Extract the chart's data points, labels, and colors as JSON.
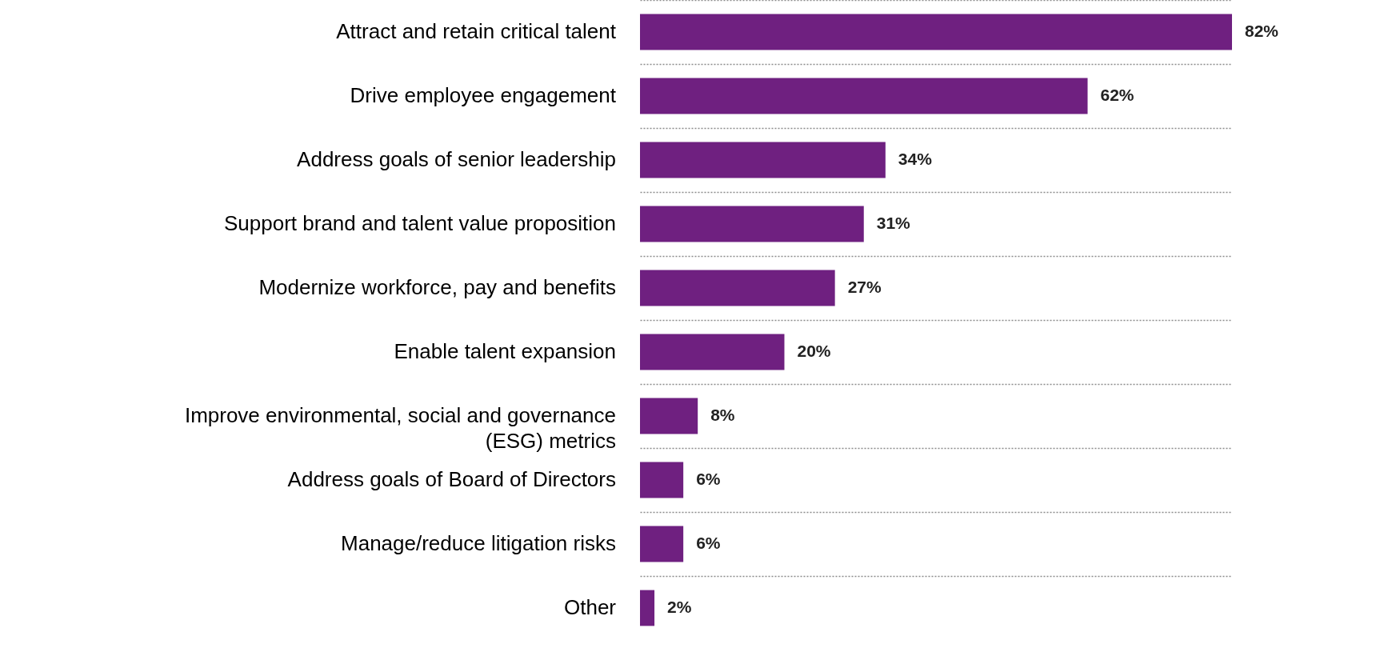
{
  "chart_data": {
    "type": "bar",
    "orientation": "horizontal",
    "categories": [
      "Attract and retain critical talent",
      "Drive employee engagement",
      "Address goals of senior leadership",
      "Support brand and talent value proposition",
      "Modernize workforce, pay and benefits",
      "Enable talent expansion",
      "Improve environmental, social and governance (ESG) metrics",
      "Address goals of Board of Directors",
      "Manage/reduce litigation risks",
      "Other"
    ],
    "values": [
      82,
      62,
      34,
      31,
      27,
      20,
      8,
      6,
      6,
      2
    ],
    "color": "#6f2080",
    "value_labels": [
      "82%",
      "62%",
      "34%",
      "31%",
      "27%",
      "20%",
      "8%",
      "6%",
      "6%",
      "2%"
    ],
    "grid": "y"
  }
}
